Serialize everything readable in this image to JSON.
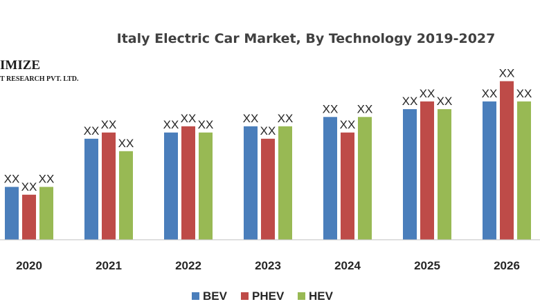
{
  "chart_data": {
    "type": "bar",
    "title": "Italy Electric Car Market, By Technology 2019-2027",
    "categories": [
      "2020",
      "2021",
      "2022",
      "2023",
      "2024",
      "2025",
      "2026"
    ],
    "series": [
      {
        "name": "BEV",
        "color": "#4a7ebb",
        "values": [
          34,
          65,
          69,
          73,
          79,
          84,
          89
        ]
      },
      {
        "name": "PHEV",
        "color": "#be4b48",
        "values": [
          29,
          69,
          73,
          65,
          69,
          89,
          102
        ]
      },
      {
        "name": "HEV",
        "color": "#98b954",
        "values": [
          34,
          57,
          69,
          73,
          79,
          84,
          89
        ]
      }
    ],
    "data_label": "XX",
    "xlabel": "",
    "ylabel": "",
    "ylim": [
      0,
      110
    ],
    "grid": false,
    "legend_position": "bottom"
  },
  "watermark": {
    "line1": "IMIZE",
    "line2": "T RESEARCH PVT. LTD."
  }
}
